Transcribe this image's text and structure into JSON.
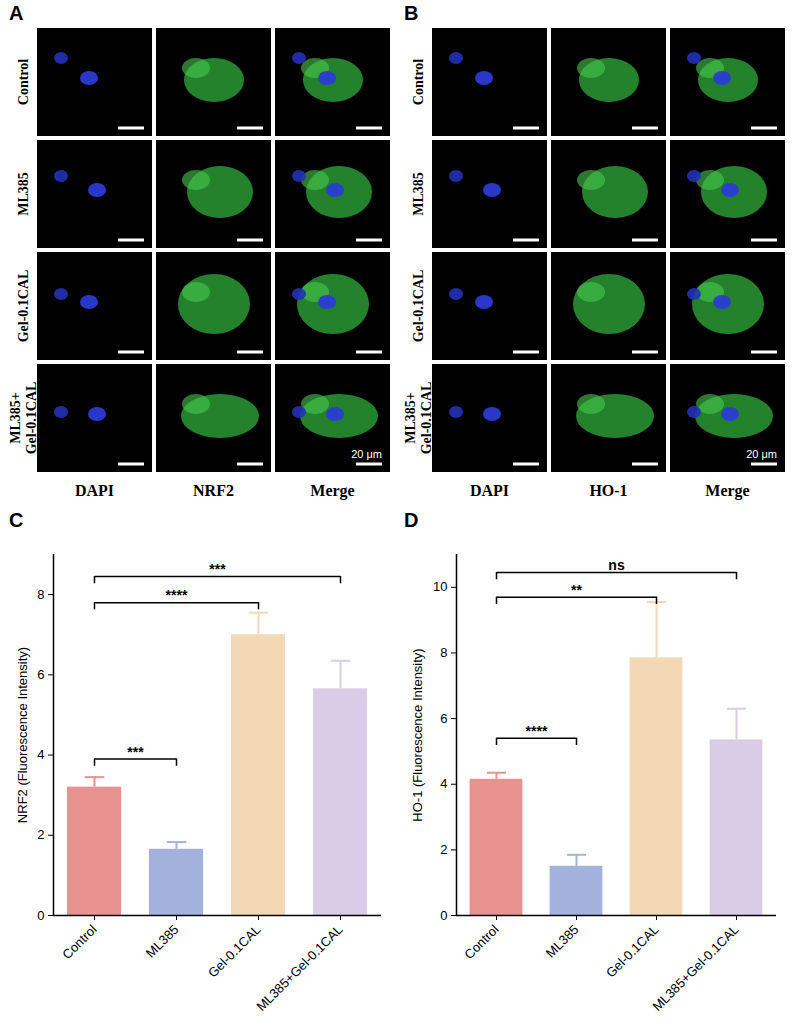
{
  "image_panels": [
    {
      "panel": "A",
      "rows": [
        "Control",
        "ML385",
        "Gel-0.1CAL",
        "ML385+ Gel-0.1CAL"
      ],
      "columns": [
        "DAPI",
        "NRF2",
        "Merge"
      ],
      "scale_bar": "20 μm"
    },
    {
      "panel": "B",
      "rows": [
        "Control",
        "ML385",
        "Gel-0.1CAL",
        "ML385+ Gel-0.1CAL"
      ],
      "columns": [
        "DAPI",
        "HO-1",
        "Merge"
      ],
      "scale_bar": "20 μm"
    }
  ],
  "chart_data": [
    {
      "type": "bar",
      "panel": "C",
      "categories": [
        "Control",
        "ML385",
        "Gel-0.1CAL",
        "ML385+Gel-0.1CAL"
      ],
      "values": [
        3.2,
        1.65,
        7.0,
        5.65
      ],
      "errors": [
        0.25,
        0.18,
        0.55,
        0.7
      ],
      "colors": [
        "#e8938f",
        "#a3b2dc",
        "#f3d8b5",
        "#d9cce6"
      ],
      "ylabel": "NRF2 (Fluorescence Intensity)",
      "ylim": [
        0,
        9
      ],
      "yticks": [
        0,
        2,
        4,
        6,
        8
      ],
      "significance": [
        {
          "from": "Control",
          "to": "ML385",
          "y": 3.9,
          "label": "***"
        },
        {
          "from": "Control",
          "to": "Gel-0.1CAL",
          "y": 7.8,
          "label": "****"
        },
        {
          "from": "Control",
          "to": "ML385+Gel-0.1CAL",
          "y": 8.45,
          "label": "***"
        }
      ]
    },
    {
      "type": "bar",
      "panel": "D",
      "categories": [
        "Control",
        "ML385",
        "Gel-0.1CAL",
        "ML385+Gel-0.1CAL"
      ],
      "values": [
        4.15,
        1.5,
        7.85,
        5.35
      ],
      "errors": [
        0.2,
        0.35,
        1.7,
        0.95
      ],
      "colors": [
        "#e8938f",
        "#a3b2dc",
        "#f3d8b5",
        "#d9cce6"
      ],
      "ylabel": "HO-1 (Fluorescence Intensity)",
      "ylim": [
        0,
        11
      ],
      "yticks": [
        0,
        2,
        4,
        6,
        8,
        10
      ],
      "significance": [
        {
          "from": "Control",
          "to": "ML385",
          "y": 5.4,
          "label": "****"
        },
        {
          "from": "Control",
          "to": "Gel-0.1CAL",
          "y": 9.7,
          "label": "**"
        },
        {
          "from": "Control",
          "to": "ML385+Gel-0.1CAL",
          "y": 10.45,
          "label": "ns"
        }
      ]
    }
  ]
}
